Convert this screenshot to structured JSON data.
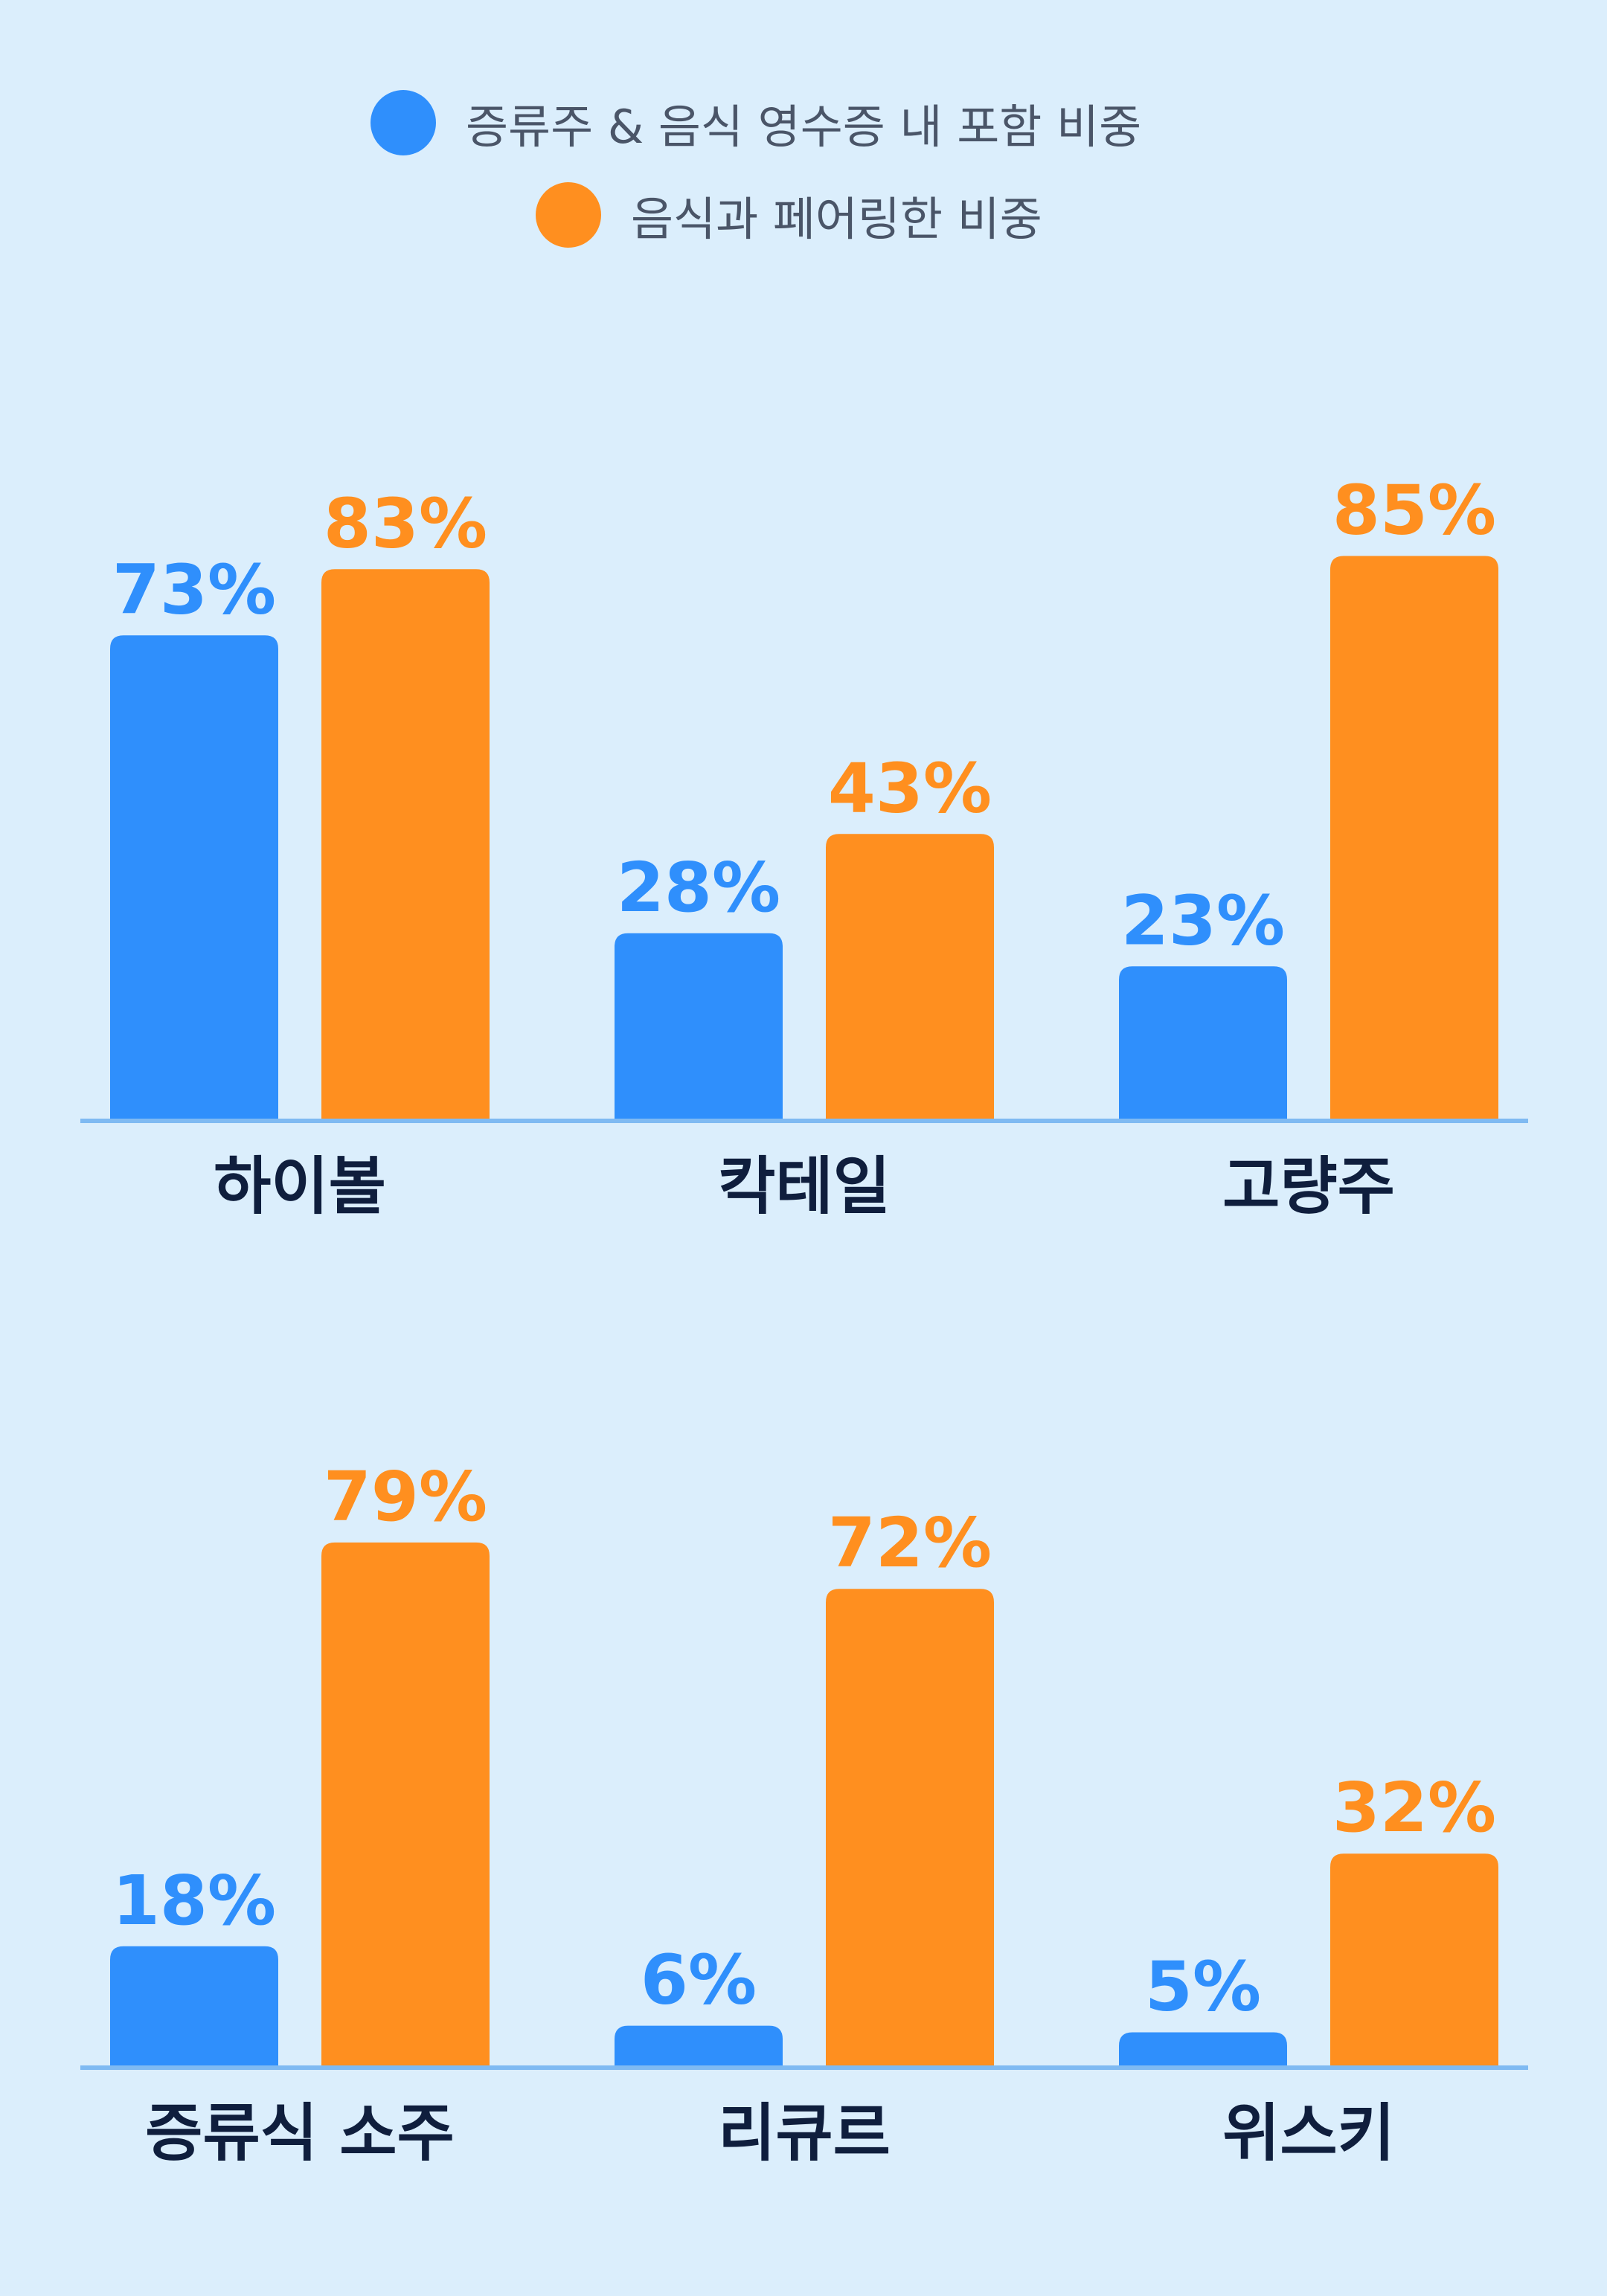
{
  "colors": {
    "background": "#dbeefc",
    "series_blue": "#2f8ffc",
    "series_orange": "#ff8f1f",
    "baseline": "#7fbaf2",
    "category_text": "#0f1e3d"
  },
  "legend": [
    {
      "label": "증류주 & 음식 영수증 내 포함 비중",
      "color": "#2f8ffc"
    },
    {
      "label": "음식과 페어링한 비중",
      "color": "#ff8f1f"
    }
  ],
  "chart_data": {
    "type": "bar",
    "categories": [
      "하이볼",
      "칵테일",
      "고량주",
      "증류식 소주",
      "리큐르",
      "위스키"
    ],
    "series": [
      {
        "name": "증류주 & 음식 영수증 내 포함 비중",
        "values": [
          73,
          28,
          23,
          18,
          6,
          5
        ],
        "labels": [
          "73%",
          "28%",
          "23%",
          "18%",
          "6%",
          "5%"
        ]
      },
      {
        "name": "음식과 페어링한 비중",
        "values": [
          83,
          43,
          85,
          79,
          72,
          32
        ],
        "labels": [
          "83%",
          "43%",
          "85%",
          "79%",
          "72%",
          "32%"
        ]
      }
    ],
    "unit": "%",
    "rows": 2,
    "groups_per_row": 3,
    "ylim": [
      0,
      100
    ],
    "grid": false,
    "legend_position": "top-center"
  }
}
